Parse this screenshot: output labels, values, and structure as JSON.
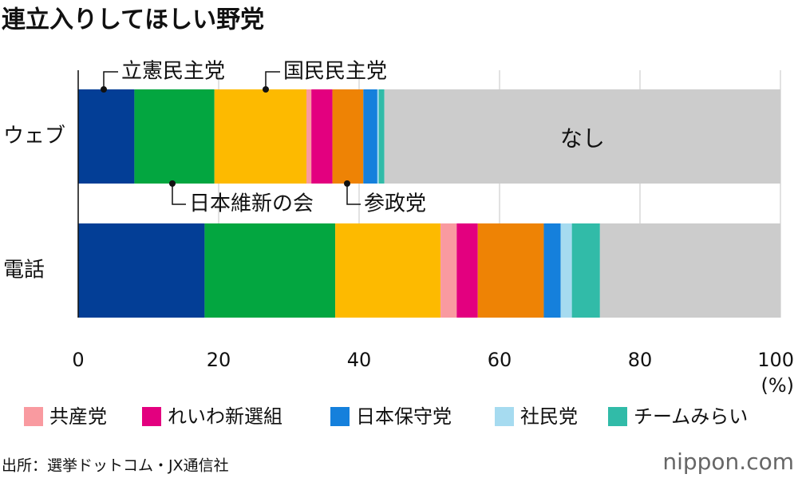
{
  "chart_data": {
    "type": "stacked-bar-horizontal",
    "title": "連立入りしてほしい野党",
    "categories": [
      "ウェブ",
      "電話"
    ],
    "series": [
      {
        "name": "立憲民主党",
        "color": "#033e96",
        "values": [
          8.0,
          18.0
        ],
        "label": "callout"
      },
      {
        "name": "日本維新の会",
        "color": "#03a640",
        "values": [
          11.4,
          18.6
        ],
        "label": "callout"
      },
      {
        "name": "国民民主党",
        "color": "#fdba00",
        "values": [
          13.1,
          15.0
        ],
        "label": "callout"
      },
      {
        "name": "共産党",
        "color": "#f99aa0",
        "values": [
          0.7,
          2.3
        ],
        "label": "legend"
      },
      {
        "name": "れいわ新選組",
        "color": "#e3007f",
        "values": [
          3.0,
          3.0
        ],
        "label": "legend"
      },
      {
        "name": "参政党",
        "color": "#ee8305",
        "values": [
          4.4,
          9.4
        ],
        "label": "callout"
      },
      {
        "name": "日本保守党",
        "color": "#1580dc",
        "values": [
          2.0,
          2.4
        ],
        "label": "legend"
      },
      {
        "name": "社民党",
        "color": "#a6dbf0",
        "values": [
          0.2,
          1.6
        ],
        "label": "legend"
      },
      {
        "name": "チームみらい",
        "color": "#31bba8",
        "values": [
          0.8,
          4.0
        ],
        "label": "legend"
      },
      {
        "name": "なし",
        "color": "#cccccc",
        "values": [
          56.4,
          25.7
        ],
        "label": "inside"
      }
    ],
    "xlim": [
      0,
      100
    ],
    "xticks": [
      0,
      20,
      40,
      60,
      80,
      100
    ],
    "x_unit": "(%)",
    "grid": true,
    "source": "出所：選挙ドットコム・JX通信社",
    "logo": "nippon.com"
  }
}
